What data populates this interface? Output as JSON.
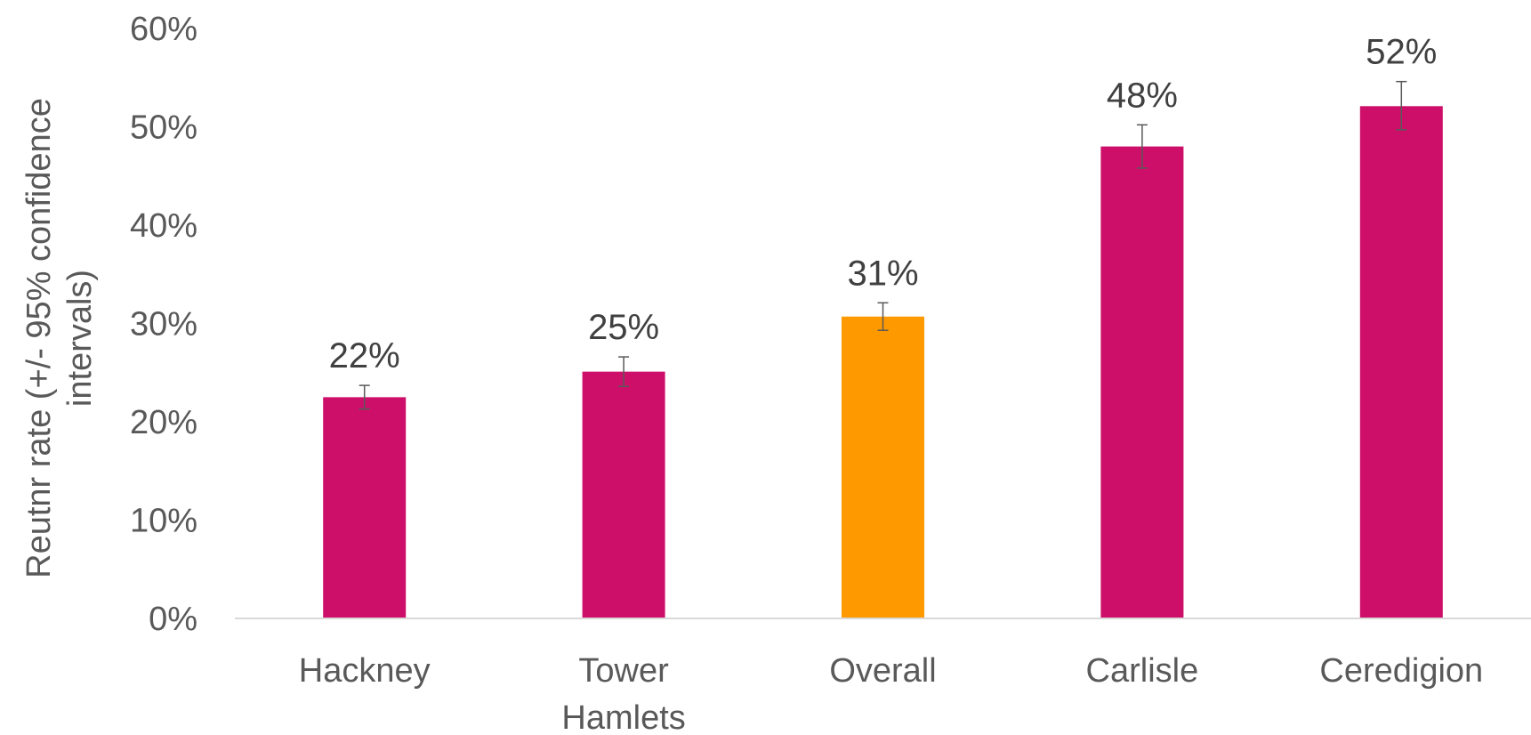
{
  "chart_data": {
    "type": "bar",
    "categories": [
      "Hackney",
      "Tower Hamlets",
      "Overall",
      "Carlisle",
      "Ceredigion"
    ],
    "category_lines": [
      [
        "Hackney"
      ],
      [
        "Tower",
        "Hamlets"
      ],
      [
        "Overall"
      ],
      [
        "Carlisle"
      ],
      [
        "Ceredigion"
      ]
    ],
    "values": [
      22.5,
      25.1,
      30.7,
      48.0,
      52.1
    ],
    "error_low": [
      21.3,
      23.6,
      29.3,
      45.8,
      49.7
    ],
    "error_high": [
      23.7,
      26.6,
      32.1,
      50.2,
      54.6
    ],
    "data_labels": [
      "22%",
      "25%",
      "31%",
      "48%",
      "52%"
    ],
    "bar_colors": [
      "#CE0F69",
      "#CE0F69",
      "#FF9900",
      "#CE0F69",
      "#CE0F69"
    ],
    "ylabel_lines": [
      "Reutnr rate (+/- 95%  confidence",
      "intervals)"
    ],
    "ylim": [
      0,
      60
    ],
    "yticks": [
      0,
      10,
      20,
      30,
      40,
      50,
      60
    ],
    "ytick_labels": [
      "0%",
      "10%",
      "20%",
      "30%",
      "40%",
      "50%",
      "60%"
    ],
    "grid": false,
    "legend": "none",
    "colors": {
      "axis": "#D9D9D9",
      "error_bar": "#595959"
    }
  }
}
